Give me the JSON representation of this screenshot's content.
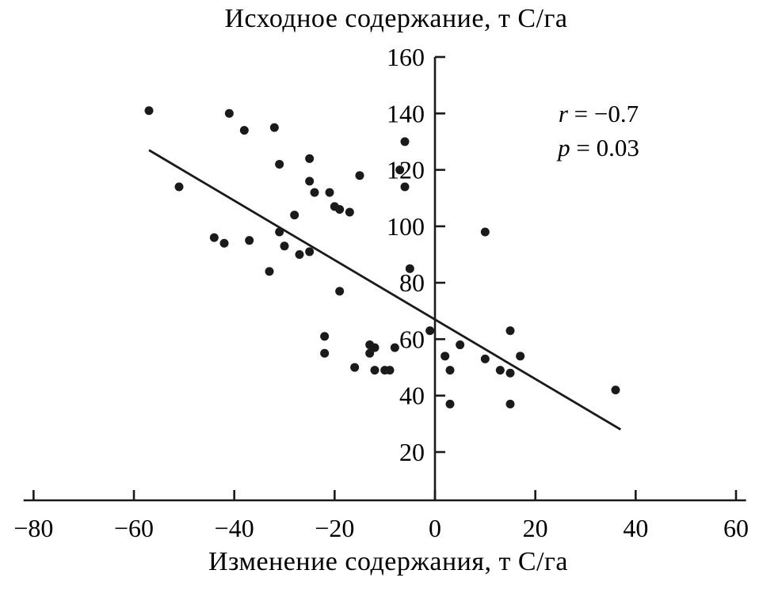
{
  "chart_data": {
    "type": "scatter",
    "title": "Исходное содержание, т С/га",
    "xlabel": "Изменение содержания, т С/га",
    "ylabel": "",
    "x_ticks": [
      -80,
      -60,
      -40,
      -20,
      0,
      20,
      40,
      60
    ],
    "y_ticks": [
      20,
      40,
      60,
      80,
      100,
      120,
      140,
      160
    ],
    "xlim": [
      -82,
      62
    ],
    "ylim": [
      0,
      160
    ],
    "grid": false,
    "legend": "none",
    "point_color": "#1a1a1a",
    "line_color": "#1a1a1a",
    "points": [
      [
        -57,
        141
      ],
      [
        -41,
        140
      ],
      [
        -38,
        134
      ],
      [
        -32,
        135
      ],
      [
        -51,
        114
      ],
      [
        -31,
        122
      ],
      [
        -25,
        124
      ],
      [
        -25,
        116
      ],
      [
        -24,
        112
      ],
      [
        -21,
        112
      ],
      [
        -20,
        107
      ],
      [
        -19,
        106
      ],
      [
        -17,
        105
      ],
      [
        -15,
        118
      ],
      [
        -44,
        96
      ],
      [
        -42,
        94
      ],
      [
        -37,
        95
      ],
      [
        -31,
        98
      ],
      [
        -30,
        93
      ],
      [
        -28,
        104
      ],
      [
        -27,
        90
      ],
      [
        -25,
        91
      ],
      [
        -33,
        84
      ],
      [
        -19,
        77
      ],
      [
        -22,
        61
      ],
      [
        -22,
        55
      ],
      [
        -16,
        50
      ],
      [
        -13,
        58
      ],
      [
        -13,
        55
      ],
      [
        -12,
        57
      ],
      [
        -12,
        49
      ],
      [
        -10,
        49
      ],
      [
        -9,
        49
      ],
      [
        -8,
        57
      ],
      [
        -6,
        130
      ],
      [
        -7,
        120
      ],
      [
        -6,
        114
      ],
      [
        -5,
        85
      ],
      [
        -1,
        63
      ],
      [
        2,
        54
      ],
      [
        3,
        49
      ],
      [
        3,
        37
      ],
      [
        5,
        58
      ],
      [
        10,
        98
      ],
      [
        10,
        53
      ],
      [
        13,
        49
      ],
      [
        15,
        63
      ],
      [
        15,
        48
      ],
      [
        15,
        37
      ],
      [
        17,
        54
      ],
      [
        36,
        42
      ]
    ],
    "trendline": {
      "x1": -57,
      "y1": 127,
      "x2": 37,
      "y2": 28
    },
    "annotation": [
      {
        "var": "r",
        "text": " = −0.7"
      },
      {
        "var": "p",
        "text": " = 0.03"
      }
    ]
  }
}
